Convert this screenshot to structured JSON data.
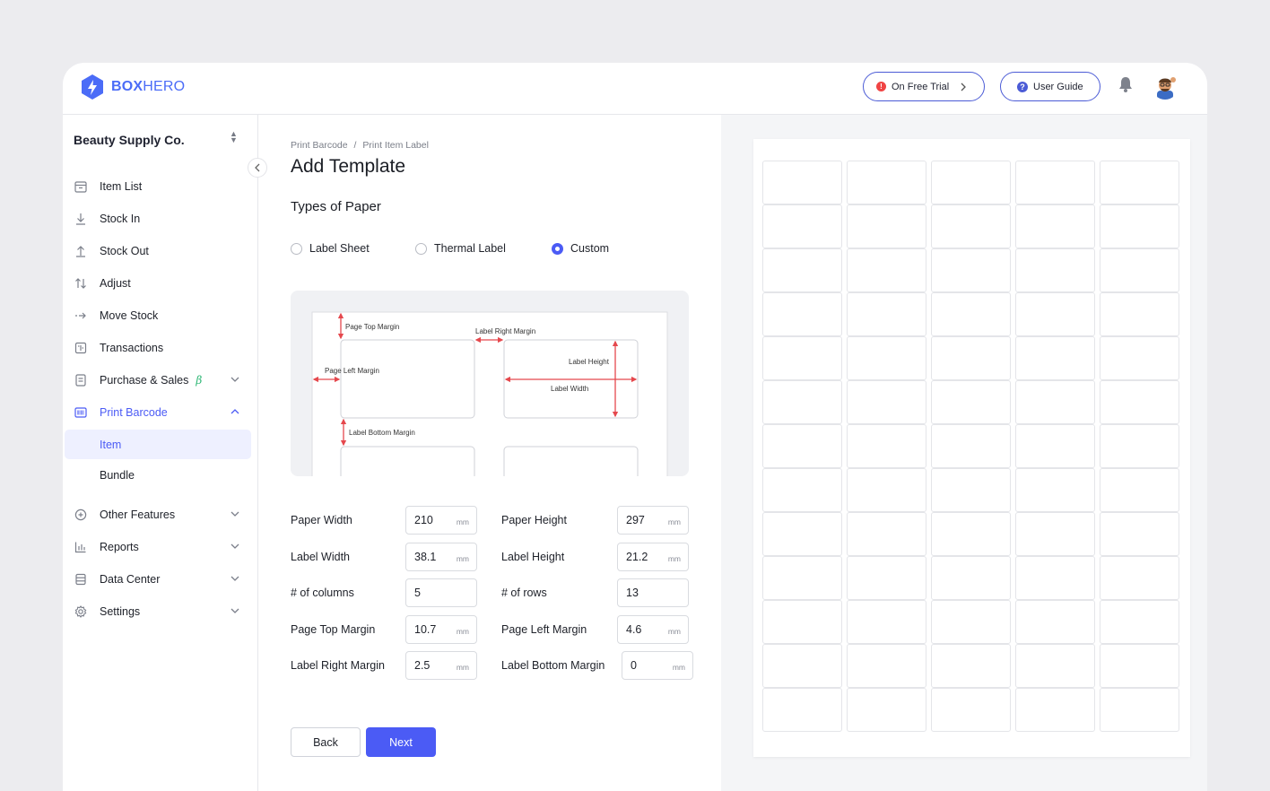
{
  "app": {
    "brand_bold": "BOX",
    "brand_light": "HERO",
    "trial_label": "On Free Trial",
    "guide_label": "User Guide"
  },
  "sidebar": {
    "company": "Beauty Supply Co.",
    "items": [
      {
        "label": "Item List",
        "icon": "calendar-box-icon"
      },
      {
        "label": "Stock In",
        "icon": "arrow-down-icon"
      },
      {
        "label": "Stock Out",
        "icon": "arrow-up-icon"
      },
      {
        "label": "Adjust",
        "icon": "swap-vertical-icon"
      },
      {
        "label": "Move Stock",
        "icon": "arrow-right-icon"
      },
      {
        "label": "Transactions",
        "icon": "ledger-icon"
      },
      {
        "label": "Purchase & Sales",
        "icon": "document-icon",
        "badge": "β"
      },
      {
        "label": "Print Barcode",
        "icon": "barcode-icon"
      },
      {
        "label": "Other Features",
        "icon": "plus-circle-icon"
      },
      {
        "label": "Reports",
        "icon": "bar-chart-icon"
      },
      {
        "label": "Data Center",
        "icon": "database-icon"
      },
      {
        "label": "Settings",
        "icon": "gear-icon"
      }
    ],
    "sub_items": [
      {
        "label": "Item"
      },
      {
        "label": "Bundle"
      }
    ]
  },
  "main": {
    "breadcrumb": {
      "first": "Print Barcode",
      "sep": "/",
      "second": "Print Item Label"
    },
    "title": "Add Template",
    "subtitle": "Types of Paper",
    "paper_types": [
      "Label Sheet",
      "Thermal Label",
      "Custom"
    ],
    "selected_paper_type": "Custom",
    "diagram_labels": {
      "top": "Page Top Margin",
      "right": "Label Right Margin",
      "left": "Page Left Margin",
      "height": "Label Height",
      "width": "Label Width",
      "bottom": "Label Bottom Margin"
    },
    "fields": [
      {
        "label": "Paper Width",
        "value": "210",
        "unit": "mm"
      },
      {
        "label": "Paper Height",
        "value": "297",
        "unit": "mm"
      },
      {
        "label": "Label Width",
        "value": "38.1",
        "unit": "mm"
      },
      {
        "label": "Label Height",
        "value": "21.2",
        "unit": "mm"
      },
      {
        "label": "# of columns",
        "value": "5",
        "unit": ""
      },
      {
        "label": "# of rows",
        "value": "13",
        "unit": ""
      },
      {
        "label": "Page Top Margin",
        "value": "10.7",
        "unit": "mm"
      },
      {
        "label": "Page Left Margin",
        "value": "4.6",
        "unit": "mm"
      },
      {
        "label": "Label Right Margin",
        "value": "2.5",
        "unit": "mm"
      },
      {
        "label": "Label Bottom Margin",
        "value": "0",
        "unit": "mm"
      }
    ],
    "back_label": "Back",
    "next_label": "Next"
  },
  "preview": {
    "columns": 5,
    "rows": 13
  },
  "colors": {
    "accent": "#4b5bf5",
    "marker": "#e5484d",
    "beta": "#2bb673"
  }
}
